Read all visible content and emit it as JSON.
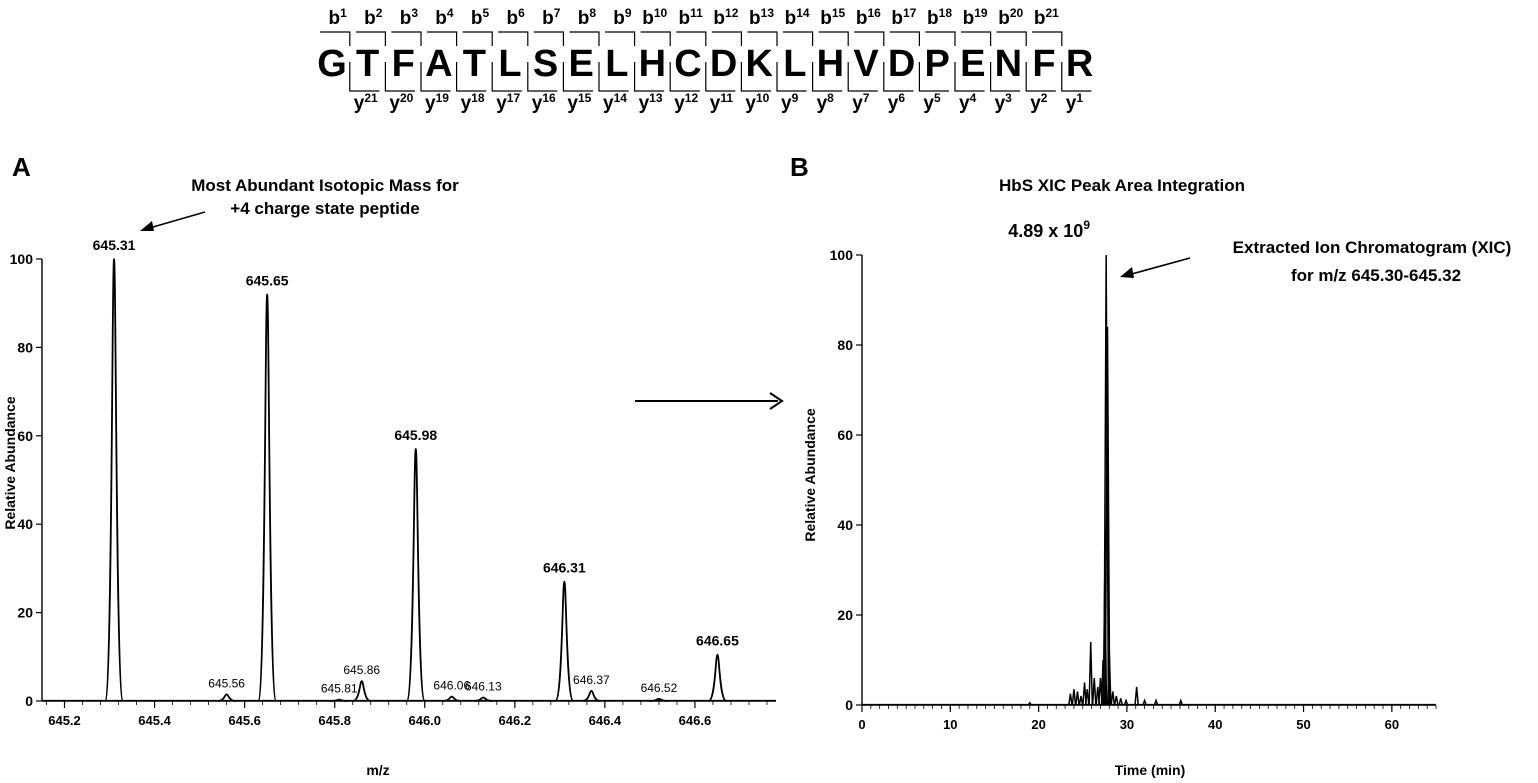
{
  "sequence": {
    "residues": [
      "G",
      "T",
      "F",
      "A",
      "T",
      "L",
      "S",
      "E",
      "L",
      "H",
      "C",
      "D",
      "K",
      "L",
      "H",
      "V",
      "D",
      "P",
      "E",
      "N",
      "F",
      "R"
    ],
    "b_labels": [
      "b1",
      "b2",
      "b3",
      "b4",
      "b5",
      "b6",
      "b7",
      "b8",
      "b9",
      "b10",
      "b11",
      "b12",
      "b13",
      "b14",
      "b15",
      "b16",
      "b17",
      "b18",
      "b19",
      "b20",
      "b21"
    ],
    "y_labels": [
      "y21",
      "y20",
      "y19",
      "y18",
      "y17",
      "y16",
      "y15",
      "y14",
      "y13",
      "y12",
      "y11",
      "y10",
      "y9",
      "y8",
      "y7",
      "y6",
      "y5",
      "y4",
      "y3",
      "y2",
      "y1"
    ]
  },
  "panels": {
    "a": {
      "letter": "A",
      "title_line1": "Most Abundant Isotopic Mass for",
      "title_line2": "+4 charge state peptide",
      "xlabel": "m/z",
      "ylabel": "Relative Abundance"
    },
    "b": {
      "letter": "B",
      "title": "HbS XIC Peak Area Integration",
      "peak_area_base": "4.89 x 10",
      "peak_area_exp": "9",
      "annotation_line1": "Extracted Ion Chromatogram (XIC)",
      "annotation_line2": "for m/z 645.30-645.32",
      "xlabel": "Time (min)",
      "ylabel": "Relative Abundance"
    }
  },
  "chart_data": [
    {
      "type": "line",
      "panel": "A",
      "title": "Most Abundant Isotopic Mass for +4 charge state peptide",
      "xlabel": "m/z",
      "ylabel": "Relative Abundance",
      "xlim": [
        645.15,
        646.78
      ],
      "ylim": [
        0,
        100
      ],
      "xticks": [
        645.2,
        645.4,
        645.6,
        645.8,
        646.0,
        646.2,
        646.4,
        646.6
      ],
      "xtick_labels": [
        "645.2",
        "645.4",
        "645.6",
        "645.8",
        "646.0",
        "646.2",
        "646.4",
        "646.6"
      ],
      "yticks": [
        0,
        20,
        40,
        60,
        80,
        100
      ],
      "ytick_labels": [
        "0",
        "20",
        "40",
        "60",
        "80",
        "100"
      ],
      "grid": false,
      "peaks": [
        {
          "mz": 645.31,
          "abundance": 100,
          "label": "645.31",
          "bold": true
        },
        {
          "mz": 645.56,
          "abundance": 1.5,
          "label": "645.56",
          "bold": false
        },
        {
          "mz": 645.65,
          "abundance": 92,
          "label": "645.65",
          "bold": true
        },
        {
          "mz": 645.81,
          "abundance": 0.3,
          "label": "645.81",
          "bold": false
        },
        {
          "mz": 645.86,
          "abundance": 4.5,
          "label": "645.86",
          "bold": false
        },
        {
          "mz": 645.98,
          "abundance": 57,
          "label": "645.98",
          "bold": true
        },
        {
          "mz": 646.06,
          "abundance": 1,
          "label": "646.06",
          "bold": false
        },
        {
          "mz": 646.13,
          "abundance": 0.8,
          "label": "646.13",
          "bold": false
        },
        {
          "mz": 646.31,
          "abundance": 27,
          "label": "646.31",
          "bold": true
        },
        {
          "mz": 646.37,
          "abundance": 2.3,
          "label": "646.37",
          "bold": false
        },
        {
          "mz": 646.52,
          "abundance": 0.5,
          "label": "646.52",
          "bold": false
        },
        {
          "mz": 646.65,
          "abundance": 10.5,
          "label": "646.65",
          "bold": true
        }
      ]
    },
    {
      "type": "line",
      "panel": "B",
      "title": "HbS XIC Peak Area Integration",
      "xlabel": "Time (min)",
      "ylabel": "Relative Abundance",
      "xlim": [
        0,
        65
      ],
      "ylim": [
        0,
        100
      ],
      "xticks": [
        0,
        10,
        20,
        30,
        40,
        50,
        60
      ],
      "xtick_labels": [
        "0",
        "10",
        "20",
        "30",
        "40",
        "50",
        "60"
      ],
      "yticks": [
        0,
        20,
        40,
        60,
        80,
        100
      ],
      "ytick_labels": [
        "0",
        "20",
        "40",
        "60",
        "80",
        "100"
      ],
      "grid": false,
      "peaks": [
        {
          "time": 19.0,
          "abundance": 0.5
        },
        {
          "time": 23.6,
          "abundance": 2.5
        },
        {
          "time": 24.0,
          "abundance": 3.5
        },
        {
          "time": 24.4,
          "abundance": 3.0
        },
        {
          "time": 24.8,
          "abundance": 2.0
        },
        {
          "time": 25.2,
          "abundance": 5.0
        },
        {
          "time": 25.5,
          "abundance": 3.5
        },
        {
          "time": 25.9,
          "abundance": 14.0
        },
        {
          "time": 26.3,
          "abundance": 6.0
        },
        {
          "time": 26.7,
          "abundance": 4.0
        },
        {
          "time": 27.0,
          "abundance": 6.0
        },
        {
          "time": 27.3,
          "abundance": 10.0
        },
        {
          "time": 27.5,
          "abundance": 30.0
        },
        {
          "time": 27.65,
          "abundance": 100.0
        },
        {
          "time": 27.8,
          "abundance": 84.0
        },
        {
          "time": 28.0,
          "abundance": 12.0
        },
        {
          "time": 28.4,
          "abundance": 3.0
        },
        {
          "time": 28.8,
          "abundance": 2.0
        },
        {
          "time": 29.3,
          "abundance": 1.5
        },
        {
          "time": 29.9,
          "abundance": 1.0
        },
        {
          "time": 31.1,
          "abundance": 4.0
        },
        {
          "time": 32.0,
          "abundance": 1.0
        },
        {
          "time": 33.3,
          "abundance": 1.0
        },
        {
          "time": 36.1,
          "abundance": 1.0
        }
      ]
    }
  ]
}
